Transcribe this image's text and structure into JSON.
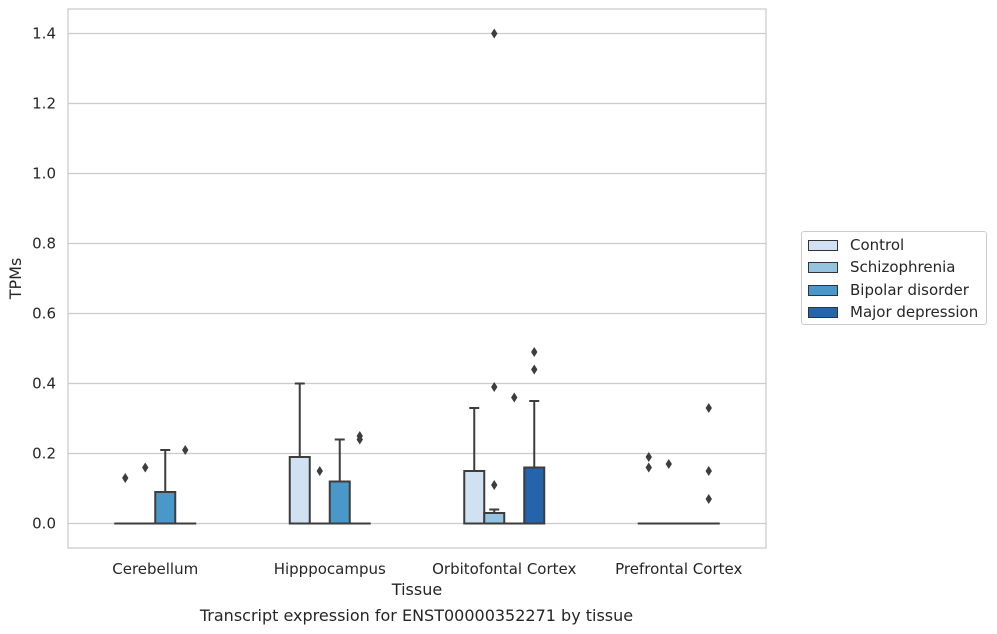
{
  "caption": "Transcript expression for ENST00000352271 by tissue",
  "chart_data": {
    "type": "box",
    "xlabel": "Tissue",
    "ylabel": "TPMs",
    "ylim": [
      -0.07,
      1.47
    ],
    "yticks": [
      0.0,
      0.2,
      0.4,
      0.6,
      0.8,
      1.0,
      1.2,
      1.4
    ],
    "ytick_labels": [
      "0.0",
      "0.2",
      "0.4",
      "0.6",
      "0.8",
      "1.0",
      "1.2",
      "1.4"
    ],
    "grid": "horizontal",
    "legend_position": "right",
    "categories": [
      "Cerebellum",
      "Hipppocampus",
      "Orbitofontal Cortex",
      "Prefrontal Cortex"
    ],
    "series": [
      {
        "name": "Control",
        "color": "#d0e1f2",
        "boxes": [
          {
            "q1": 0,
            "median": 0,
            "q3": 0,
            "whisker_low": 0,
            "whisker_high": 0,
            "outliers": [
              0.13
            ]
          },
          {
            "q1": 0,
            "median": 0,
            "q3": 0.19,
            "whisker_low": 0,
            "whisker_high": 0.4,
            "outliers": []
          },
          {
            "q1": 0,
            "median": 0,
            "q3": 0.15,
            "whisker_low": 0,
            "whisker_high": 0.33,
            "outliers": []
          },
          {
            "q1": 0,
            "median": 0,
            "q3": 0,
            "whisker_low": 0,
            "whisker_high": 0,
            "outliers": [
              0.16,
              0.19
            ]
          }
        ]
      },
      {
        "name": "Schizophrenia",
        "color": "#94c4df",
        "boxes": [
          {
            "q1": 0,
            "median": 0,
            "q3": 0,
            "whisker_low": 0,
            "whisker_high": 0,
            "outliers": [
              0.16
            ]
          },
          {
            "q1": 0,
            "median": 0,
            "q3": 0,
            "whisker_low": 0,
            "whisker_high": 0,
            "outliers": [
              0.15
            ]
          },
          {
            "q1": 0,
            "median": 0,
            "q3": 0.03,
            "whisker_low": 0,
            "whisker_high": 0.04,
            "outliers": [
              0.11,
              0.39,
              1.4
            ]
          },
          {
            "q1": 0,
            "median": 0,
            "q3": 0,
            "whisker_low": 0,
            "whisker_high": 0,
            "outliers": [
              0.17
            ]
          }
        ]
      },
      {
        "name": "Bipolar disorder",
        "color": "#4a98c9",
        "boxes": [
          {
            "q1": 0,
            "median": 0,
            "q3": 0.09,
            "whisker_low": 0,
            "whisker_high": 0.21,
            "outliers": []
          },
          {
            "q1": 0,
            "median": 0,
            "q3": 0.12,
            "whisker_low": 0,
            "whisker_high": 0.24,
            "outliers": []
          },
          {
            "q1": 0,
            "median": 0,
            "q3": 0,
            "whisker_low": 0,
            "whisker_high": 0,
            "outliers": [
              0.36
            ]
          },
          {
            "q1": 0,
            "median": 0,
            "q3": 0,
            "whisker_low": 0,
            "whisker_high": 0,
            "outliers": []
          }
        ]
      },
      {
        "name": "Major depression",
        "color": "#2364aa",
        "boxes": [
          {
            "q1": 0,
            "median": 0,
            "q3": 0,
            "whisker_low": 0,
            "whisker_high": 0,
            "outliers": [
              0.21
            ]
          },
          {
            "q1": 0,
            "median": 0,
            "q3": 0,
            "whisker_low": 0,
            "whisker_high": 0,
            "outliers": [
              0.24,
              0.25
            ]
          },
          {
            "q1": 0,
            "median": 0,
            "q3": 0.16,
            "whisker_low": 0,
            "whisker_high": 0.35,
            "outliers": [
              0.44,
              0.49
            ]
          },
          {
            "q1": 0,
            "median": 0,
            "q3": 0,
            "whisker_low": 0,
            "whisker_high": 0,
            "outliers": [
              0.07,
              0.15,
              0.33
            ]
          }
        ]
      }
    ]
  }
}
